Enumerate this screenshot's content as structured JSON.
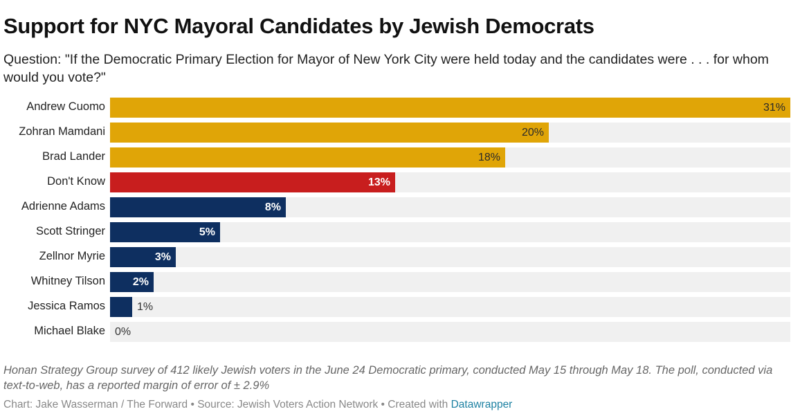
{
  "title": "Support for NYC Mayoral Candidates by Jewish Democrats",
  "subtitle": "Question: \"If the Democratic Primary Election for Mayor of New York City were held today and the candidates were . . . for whom would you vote?\"",
  "chart_data": {
    "type": "bar",
    "orientation": "horizontal",
    "categories": [
      "Andrew Cuomo",
      "Zohran Mamdani",
      "Brad Lander",
      "Don't Know",
      "Adrienne Adams",
      "Scott Stringer",
      "Zellnor Myrie",
      "Whitney Tilson",
      "Jessica Ramos",
      "Michael Blake"
    ],
    "values": [
      31,
      20,
      18,
      13,
      8,
      5,
      3,
      2,
      1,
      0
    ],
    "value_labels": [
      "31%",
      "20%",
      "18%",
      "13%",
      "8%",
      "5%",
      "3%",
      "2%",
      "1%",
      "0%"
    ],
    "colors": [
      "#e0a507",
      "#e0a507",
      "#e0a507",
      "#c81e1e",
      "#0e2f60",
      "#0e2f60",
      "#0e2f60",
      "#0e2f60",
      "#0e2f60",
      "#0e2f60"
    ],
    "xlim": [
      0,
      31
    ],
    "unit": "%"
  },
  "footer": {
    "note": "Honan Strategy Group survey of 412 likely Jewish voters in the June 24 Democratic primary, conducted May 15 through May 18. The poll, conducted via text-to-web, has a reported margin of error of ± 2.9%",
    "credit": "Chart: Jake Wasserman / The Forward • Source: Jewish Voters Action Network • Created with ",
    "link": "Datawrapper"
  }
}
